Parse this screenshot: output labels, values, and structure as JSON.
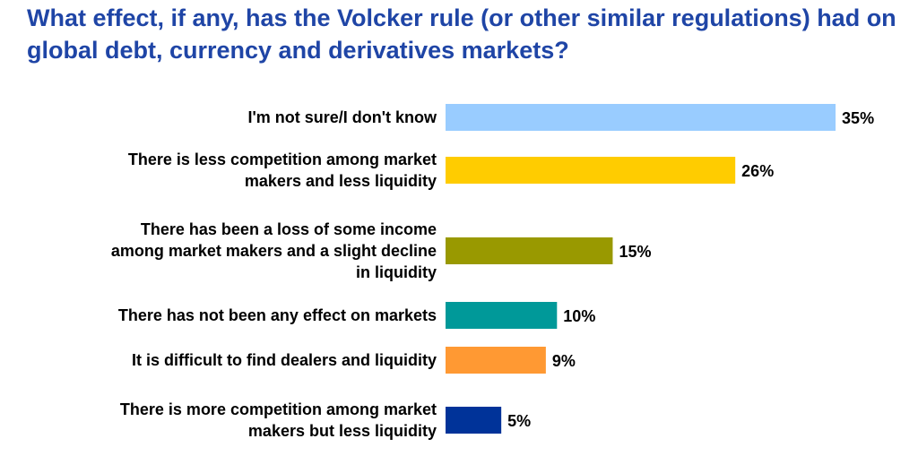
{
  "chart_data": {
    "type": "bar",
    "orientation": "horizontal",
    "title": "What effect, if any, has the Volcker rule (or other similar regulations) had on global debt, currency and derivatives markets?",
    "categories": [
      [
        "I'm not sure/I don't know"
      ],
      [
        "There is less competition among market",
        "makers and less liquidity"
      ],
      [
        "There has been a loss of some income",
        "among market makers and a slight decline",
        "in liquidity"
      ],
      [
        "There has not been any effect on markets"
      ],
      [
        "It is difficult to find dealers and liquidity"
      ],
      [
        "There is more competition among market",
        "makers but less liquidity"
      ]
    ],
    "values": [
      35,
      26,
      15,
      10,
      9,
      5
    ],
    "value_labels": [
      "35%",
      "26%",
      "15%",
      "10%",
      "9%",
      "5%"
    ],
    "unit": "%",
    "colors": [
      "#99ccff",
      "#ffcc00",
      "#999900",
      "#009999",
      "#ff9933",
      "#003399"
    ],
    "title_color": "#1f45a6",
    "grid": false,
    "legend": "none",
    "x_axis_visible": false
  }
}
